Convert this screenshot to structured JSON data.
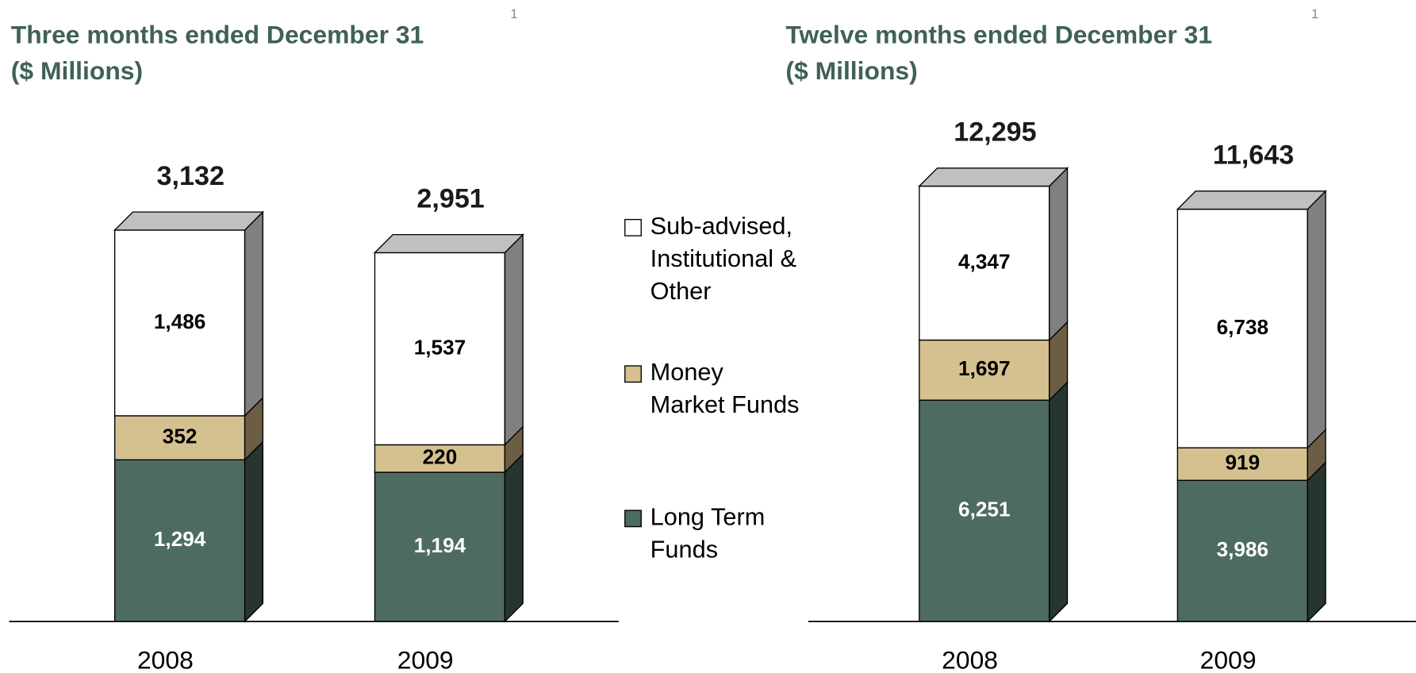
{
  "chart_data": [
    {
      "type": "stacked-bar-3d",
      "title": "Three months ended December 31",
      "title_note": "1",
      "subtitle": "($ Millions)",
      "categories": [
        "2008",
        "2009"
      ],
      "series": [
        {
          "name": "Long Term Funds",
          "color": "#4e6b62",
          "side_color": "#263530",
          "label_color": "#ffffff",
          "values": [
            1294,
            1194
          ],
          "value_labels": [
            "1,294",
            "1,194"
          ]
        },
        {
          "name": "Money Market Funds",
          "color": "#d5c090",
          "side_color": "#6b5e45",
          "label_color": "#000000",
          "values": [
            352,
            220
          ],
          "value_labels": [
            "352",
            "220"
          ]
        },
        {
          "name": "Sub-advised, Institutional & Other",
          "color": "#ffffff",
          "side_color": "#808080",
          "label_color": "#000000",
          "values": [
            1486,
            1537
          ],
          "value_labels": [
            "1,486",
            "1,537"
          ]
        }
      ],
      "totals": [
        3132,
        2951
      ],
      "total_labels": [
        "3,132",
        "2,951"
      ],
      "ylim": [
        0,
        4250
      ]
    },
    {
      "type": "stacked-bar-3d",
      "title": "Twelve months ended December 31",
      "title_note": "1",
      "subtitle": "($ Millions)",
      "categories": [
        "2008",
        "2009"
      ],
      "series": [
        {
          "color": "#4e6b62",
          "side_color": "#263530",
          "label_color": "#ffffff",
          "values": [
            6251,
            3986
          ],
          "value_labels": [
            "6,251",
            "3,986"
          ]
        },
        {
          "color": "#d5c090",
          "side_color": "#6b5e45",
          "label_color": "#000000",
          "values": [
            1697,
            919
          ],
          "value_labels": [
            "1,697",
            "919"
          ]
        },
        {
          "color": "#ffffff",
          "side_color": "#808080",
          "label_color": "#000000",
          "values": [
            4347,
            6738
          ],
          "value_labels": [
            "4,347",
            "6,738"
          ]
        }
      ],
      "totals": [
        12295,
        11643
      ],
      "total_labels": [
        "12,295",
        "11,643"
      ],
      "ylim": [
        0,
        15000
      ]
    }
  ]
}
